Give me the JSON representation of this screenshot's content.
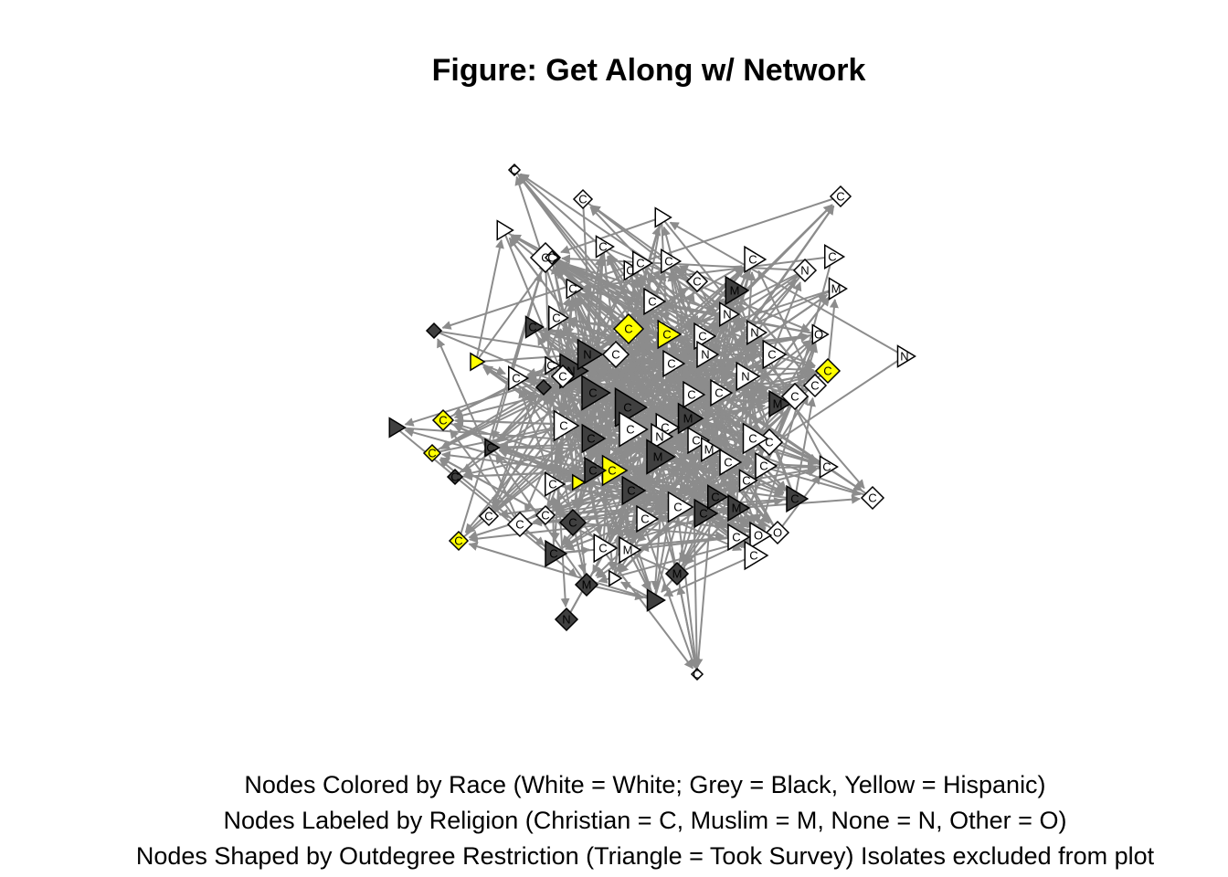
{
  "title": "Figure: Get Along w/ Network",
  "captions": [
    "Nodes Colored by Race (White = White; Grey = Black, Yellow = Hispanic)",
    "Nodes Labeled by Religion (Christian = C, Muslim = M, None = N, Other = O)",
    "Nodes Shaped by Outdegree Restriction (Triangle = Took Survey) Isolates excluded from plot"
  ],
  "colors": {
    "white_node": "#ffffff",
    "black_node": "#404040",
    "hispanic_node": "#ffff00",
    "edge": "#8c8c8c",
    "node_outline": "#000000"
  },
  "network": {
    "directed": true,
    "nodes": [
      {
        "label": "C",
        "race": "white",
        "shape": "diamond"
      },
      {
        "label": "C",
        "race": "white",
        "shape": "diamond"
      },
      {
        "label": "C",
        "race": "white",
        "shape": "diamond"
      },
      {
        "label": "",
        "race": "white",
        "shape": "triangle"
      },
      {
        "label": "",
        "race": "white",
        "shape": "triangle"
      },
      {
        "label": "C",
        "race": "white",
        "shape": "diamond"
      },
      {
        "label": "C",
        "race": "white",
        "shape": "triangle"
      },
      {
        "label": "C",
        "race": "white",
        "shape": "triangle"
      },
      {
        "label": "C",
        "race": "white",
        "shape": "triangle"
      },
      {
        "label": "C",
        "race": "white",
        "shape": "triangle"
      },
      {
        "label": "C",
        "race": "white",
        "shape": "diamond"
      },
      {
        "label": "N",
        "race": "white",
        "shape": "diamond"
      },
      {
        "label": "C",
        "race": "white",
        "shape": "triangle"
      },
      {
        "label": "M",
        "race": "white",
        "shape": "triangle"
      },
      {
        "label": "C",
        "race": "white",
        "shape": "triangle"
      },
      {
        "label": "C",
        "race": "white",
        "shape": "triangle"
      },
      {
        "label": "M",
        "race": "black",
        "shape": "triangle"
      },
      {
        "label": "C",
        "race": "hispanic",
        "shape": "diamond"
      },
      {
        "label": "C",
        "race": "hispanic",
        "shape": "triangle"
      },
      {
        "label": "C",
        "race": "white",
        "shape": "triangle"
      },
      {
        "label": "N",
        "race": "white",
        "shape": "triangle"
      },
      {
        "label": "C",
        "race": "white",
        "shape": "triangle"
      },
      {
        "label": "O",
        "race": "white",
        "shape": "triangle"
      },
      {
        "label": "N",
        "race": "white",
        "shape": "triangle"
      },
      {
        "label": "C",
        "race": "hispanic",
        "shape": "diamond"
      },
      {
        "label": "",
        "race": "black",
        "shape": "diamond"
      },
      {
        "label": "",
        "race": "hispanic",
        "shape": "triangle"
      },
      {
        "label": "C",
        "race": "white",
        "shape": "triangle"
      },
      {
        "label": "C",
        "race": "white",
        "shape": "triangle"
      },
      {
        "label": "N",
        "race": "black",
        "shape": "triangle"
      },
      {
        "label": "N",
        "race": "black",
        "shape": "triangle"
      },
      {
        "label": "C",
        "race": "black",
        "shape": "triangle"
      },
      {
        "label": "C",
        "race": "black",
        "shape": "triangle"
      },
      {
        "label": "C",
        "race": "white",
        "shape": "diamond"
      },
      {
        "label": "C",
        "race": "white",
        "shape": "diamond"
      },
      {
        "label": "C",
        "race": "white",
        "shape": "triangle"
      },
      {
        "label": "C",
        "race": "white",
        "shape": "triangle"
      },
      {
        "label": "N",
        "race": "white",
        "shape": "triangle"
      },
      {
        "label": "M",
        "race": "black",
        "shape": "triangle"
      },
      {
        "label": "C",
        "race": "hispanic",
        "shape": "diamond"
      },
      {
        "label": "C",
        "race": "white",
        "shape": "diamond"
      },
      {
        "label": "C",
        "race": "white",
        "shape": "diamond"
      },
      {
        "label": "",
        "race": "black",
        "shape": "triangle"
      },
      {
        "label": "C",
        "race": "hispanic",
        "shape": "diamond"
      },
      {
        "label": "C",
        "race": "white",
        "shape": "triangle"
      },
      {
        "label": "C",
        "race": "black",
        "shape": "triangle"
      },
      {
        "label": "C",
        "race": "black",
        "shape": "triangle"
      },
      {
        "label": "M",
        "race": "black",
        "shape": "triangle"
      },
      {
        "label": "C",
        "race": "white",
        "shape": "triangle"
      },
      {
        "label": "N",
        "race": "white",
        "shape": "triangle"
      },
      {
        "label": "C",
        "race": "white",
        "shape": "triangle"
      },
      {
        "label": "M",
        "race": "black",
        "shape": "triangle"
      },
      {
        "label": "C",
        "race": "white",
        "shape": "triangle"
      },
      {
        "label": "C",
        "race": "white",
        "shape": "triangle"
      },
      {
        "label": "C",
        "race": "white",
        "shape": "diamond"
      },
      {
        "label": "C",
        "race": "white",
        "shape": "triangle"
      },
      {
        "label": "C",
        "race": "black",
        "shape": "triangle"
      },
      {
        "label": "",
        "race": "hispanic",
        "shape": "triangle"
      },
      {
        "label": "C",
        "race": "hispanic",
        "shape": "triangle"
      },
      {
        "label": "C",
        "race": "black",
        "shape": "triangle"
      },
      {
        "label": "C",
        "race": "white",
        "shape": "triangle"
      },
      {
        "label": "C",
        "race": "white",
        "shape": "triangle"
      },
      {
        "label": "C",
        "race": "white",
        "shape": "triangle"
      },
      {
        "label": "C",
        "race": "white",
        "shape": "triangle"
      },
      {
        "label": "C",
        "race": "white",
        "shape": "triangle"
      },
      {
        "label": "C",
        "race": "black",
        "shape": "diamond"
      },
      {
        "label": "C",
        "race": "white",
        "shape": "diamond"
      },
      {
        "label": "C",
        "race": "white",
        "shape": "diamond"
      },
      {
        "label": "C",
        "race": "white",
        "shape": "diamond"
      },
      {
        "label": "C",
        "race": "black",
        "shape": "diamond"
      },
      {
        "label": "C",
        "race": "black",
        "shape": "triangle"
      },
      {
        "label": "C",
        "race": "white",
        "shape": "triangle"
      },
      {
        "label": "C",
        "race": "hispanic",
        "shape": "diamond"
      },
      {
        "label": "C",
        "race": "white",
        "shape": "triangle"
      },
      {
        "label": "C",
        "race": "black",
        "shape": "triangle"
      },
      {
        "label": "M",
        "race": "black",
        "shape": "triangle"
      },
      {
        "label": "C",
        "race": "white",
        "shape": "triangle"
      },
      {
        "label": "C",
        "race": "black",
        "shape": "triangle"
      },
      {
        "label": "C",
        "race": "white",
        "shape": "triangle"
      },
      {
        "label": "O",
        "race": "white",
        "shape": "diamond"
      },
      {
        "label": "C",
        "race": "black",
        "shape": "triangle"
      },
      {
        "label": "M",
        "race": "black",
        "shape": "diamond"
      },
      {
        "label": "M",
        "race": "black",
        "shape": "diamond"
      },
      {
        "label": "",
        "race": "white",
        "shape": "triangle"
      },
      {
        "label": "",
        "race": "black",
        "shape": "triangle"
      },
      {
        "label": "N",
        "race": "black",
        "shape": "diamond"
      },
      {
        "label": "C",
        "race": "white",
        "shape": "diamond"
      },
      {
        "label": "N",
        "race": "white",
        "shape": "triangle"
      },
      {
        "label": "C",
        "race": "white",
        "shape": "diamond"
      },
      {
        "label": "",
        "race": "black",
        "shape": "diamond"
      },
      {
        "label": "M",
        "race": "white",
        "shape": "triangle"
      },
      {
        "label": "C",
        "race": "white",
        "shape": "triangle"
      },
      {
        "label": "O",
        "race": "white",
        "shape": "triangle"
      },
      {
        "label": "M",
        "race": "white",
        "shape": "triangle"
      },
      {
        "label": "N",
        "race": "white",
        "shape": "triangle"
      },
      {
        "label": "C",
        "race": "black",
        "shape": "triangle"
      },
      {
        "label": "C",
        "race": "white",
        "shape": "triangle"
      },
      {
        "label": "C",
        "race": "white",
        "shape": "triangle"
      },
      {
        "label": "C",
        "race": "white",
        "shape": "diamond"
      }
    ]
  }
}
